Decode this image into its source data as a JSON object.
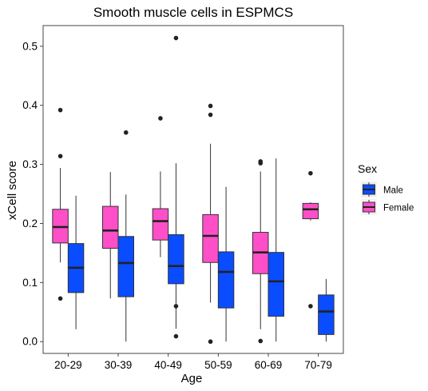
{
  "chart_data": {
    "type": "boxplot",
    "title": "Smooth muscle cells in ESPMCS",
    "xlabel": "Age",
    "ylabel": "xCell score",
    "categories": [
      "20-29",
      "30-39",
      "40-49",
      "50-59",
      "60-69",
      "70-79"
    ],
    "y_ticks": [
      "0.0",
      "0.1",
      "0.2",
      "0.3",
      "0.4",
      "0.5"
    ],
    "ylim": [
      -0.02,
      0.535
    ],
    "grid": false,
    "legend": {
      "title": "Sex",
      "placement": "right",
      "entries": [
        "Male",
        "Female"
      ]
    },
    "series": [
      {
        "name": "Female",
        "color": "#ff4fc8",
        "boxes": [
          {
            "low": 0.134,
            "q1": 0.167,
            "median": 0.194,
            "q3": 0.224,
            "high": 0.294,
            "outliers": [
              0.392,
              0.314,
              0.073
            ]
          },
          {
            "low": 0.073,
            "q1": 0.158,
            "median": 0.188,
            "q3": 0.229,
            "high": 0.287,
            "outliers": []
          },
          {
            "low": 0.143,
            "q1": 0.172,
            "median": 0.204,
            "q3": 0.225,
            "high": 0.288,
            "outliers": [
              0.378
            ]
          },
          {
            "low": 0.066,
            "q1": 0.134,
            "median": 0.179,
            "q3": 0.215,
            "high": 0.335,
            "outliers": [
              0.399,
              0.384,
              0.0
            ]
          },
          {
            "low": 0.021,
            "q1": 0.115,
            "median": 0.151,
            "q3": 0.185,
            "high": 0.288,
            "outliers": [
              0.305,
              0.302,
              0.001
            ]
          },
          {
            "low": 0.205,
            "q1": 0.208,
            "median": 0.224,
            "q3": 0.234,
            "high": 0.236,
            "outliers": [
              0.285,
              0.06
            ]
          }
        ]
      },
      {
        "name": "Male",
        "color": "#0a4cff",
        "boxes": [
          {
            "low": 0.021,
            "q1": 0.083,
            "median": 0.125,
            "q3": 0.166,
            "high": 0.247,
            "outliers": []
          },
          {
            "low": 0.0,
            "q1": 0.076,
            "median": 0.133,
            "q3": 0.178,
            "high": 0.249,
            "outliers": [
              0.354
            ]
          },
          {
            "low": 0.022,
            "q1": 0.098,
            "median": 0.128,
            "q3": 0.181,
            "high": 0.302,
            "outliers": [
              0.514,
              0.06,
              0.009
            ]
          },
          {
            "low": 0.0,
            "q1": 0.057,
            "median": 0.118,
            "q3": 0.152,
            "high": 0.262,
            "outliers": []
          },
          {
            "low": 0.0,
            "q1": 0.043,
            "median": 0.102,
            "q3": 0.151,
            "high": 0.31,
            "outliers": []
          },
          {
            "low": 0.0,
            "q1": 0.012,
            "median": 0.051,
            "q3": 0.079,
            "high": 0.106,
            "outliers": []
          }
        ]
      }
    ]
  }
}
